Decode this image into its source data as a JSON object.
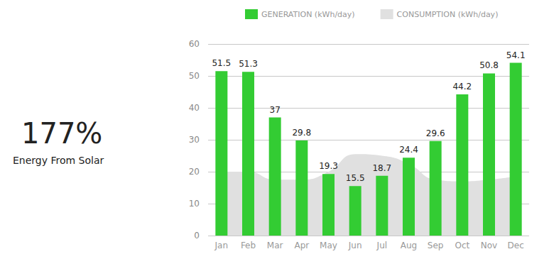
{
  "chart_data": {
    "type": "bar",
    "headline": "177%",
    "headline_caption": "Energy From Solar",
    "categories": [
      "Jan",
      "Feb",
      "Mar",
      "Apr",
      "May",
      "Jun",
      "Jul",
      "Aug",
      "Sep",
      "Oct",
      "Nov",
      "Dec"
    ],
    "series": [
      {
        "name": "GENERATION (kWh/day)",
        "type": "bar",
        "color": "#33cc33",
        "data_labels": true,
        "values": [
          51.5,
          51.3,
          37,
          29.8,
          19.3,
          15.5,
          18.7,
          24.4,
          29.6,
          44.2,
          50.8,
          54.1
        ]
      },
      {
        "name": "CONSUMPTION (kWh/day)",
        "type": "area",
        "color": "#e0e0e0",
        "data_labels": false,
        "values": [
          20,
          20,
          17.5,
          17.5,
          20,
          25.5,
          25,
          22.5,
          17.5,
          17,
          17.5,
          18.5
        ]
      }
    ],
    "ylim": [
      0,
      60
    ],
    "yticks": [
      0,
      10,
      20,
      30,
      40,
      50,
      60
    ],
    "grid": true,
    "legend": "top"
  }
}
